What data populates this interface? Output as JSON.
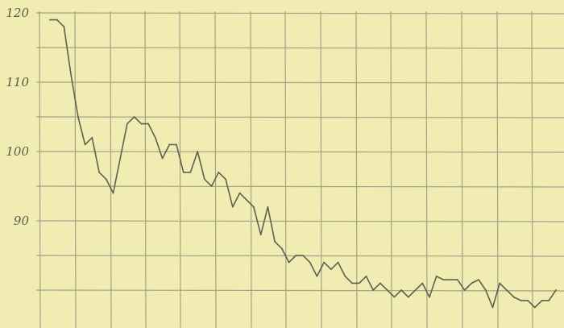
{
  "chart_data": {
    "type": "line",
    "title": "",
    "xlabel": "",
    "ylabel": "",
    "grid": true,
    "ylim": [
      78,
      120
    ],
    "yticks": [
      120,
      110,
      100,
      90
    ],
    "ytick_labels": [
      "120",
      "110",
      "100",
      "90"
    ],
    "xlim": [
      0,
      75
    ],
    "series": [
      {
        "values": [
          119,
          119,
          118,
          111,
          105,
          101,
          102,
          97,
          96,
          94,
          99,
          104,
          105,
          104,
          104,
          102,
          99,
          101,
          101,
          97,
          97,
          100,
          96,
          95,
          97,
          96,
          92,
          94,
          93,
          92,
          88,
          92,
          87,
          86,
          84,
          85,
          85,
          84,
          82,
          84,
          83,
          84,
          82,
          81,
          81,
          82,
          80,
          81,
          80,
          79,
          80,
          79,
          80,
          81,
          79,
          82,
          81.5,
          81.5,
          81.5,
          80,
          81,
          81.5,
          80,
          77.5,
          81,
          80,
          79,
          78.5,
          78.5,
          77.5,
          78.5,
          78.5,
          80
        ]
      }
    ]
  }
}
